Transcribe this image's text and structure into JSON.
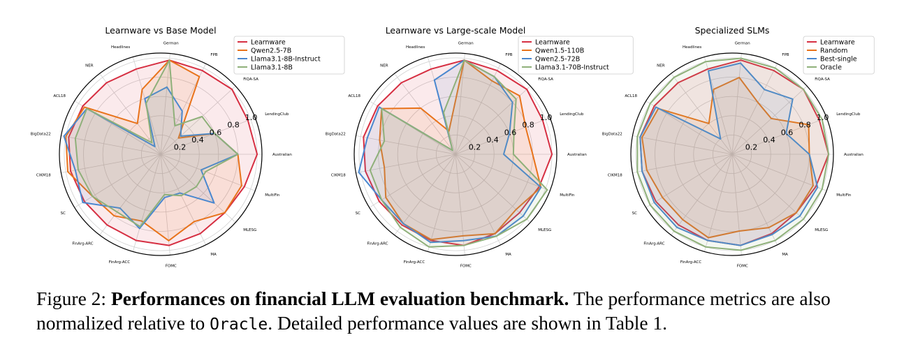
{
  "chart_data": [
    {
      "type": "radar",
      "title": "Learnware vs Base Model",
      "categories": [
        "Australian",
        "LendingClub",
        "FiQA-SA",
        "FPB",
        "German",
        "Headlines",
        "NER",
        "ACL18",
        "BigData22",
        "CIKM18",
        "SC",
        "FinArg-ARC",
        "FinArg-ACC",
        "FOMC",
        "MA",
        "MLESG",
        "MultiFin"
      ],
      "rticks": [
        "0.2",
        "0.4",
        "0.6",
        "0.8",
        "1.0"
      ],
      "rlim": [
        0,
        1.05
      ],
      "legend_position": "upper-right",
      "series": [
        {
          "name": "Learnware",
          "color": "#d62f42",
          "values": [
            1.0,
            0.97,
            1.0,
            0.97,
            0.98,
            0.92,
            0.93,
            0.95,
            0.97,
            0.95,
            0.93,
            0.92,
            0.93,
            0.95,
            0.92,
            0.9,
            0.93
          ]
        },
        {
          "name": "Qwen2.5-7B",
          "color": "#e8731b",
          "values": [
            0.8,
            0.6,
            0.25,
            0.9,
            0.98,
            0.7,
            0.4,
            0.93,
            1.0,
            0.98,
            0.83,
            0.8,
            0.72,
            0.9,
            0.78,
            0.9,
            0.9
          ]
        },
        {
          "name": "Llama3.1-8B-Instruct",
          "color": "#4a87cf",
          "values": [
            0.8,
            0.6,
            0.28,
            0.5,
            0.7,
            0.6,
            0.1,
            0.9,
            1.02,
            0.9,
            0.95,
            0.7,
            0.8,
            0.45,
            0.45,
            0.75,
            0.45
          ]
        },
        {
          "name": "Llama3.1-8B",
          "color": "#8fb07a",
          "values": [
            0.8,
            0.6,
            0.58,
            0.33,
            0.98,
            0.55,
            0.15,
            0.9,
            0.9,
            0.87,
            0.83,
            0.75,
            0.78,
            0.42,
            0.48,
            0.5,
            0.5
          ]
        }
      ]
    },
    {
      "type": "radar",
      "title": "Learnware vs Large-scale Model",
      "categories": [
        "Australian",
        "LendingClub",
        "FiQA-SA",
        "FPB",
        "German",
        "Headlines",
        "NER",
        "ACL18",
        "BigData22",
        "CIKM18",
        "SC",
        "FinArg-ARC",
        "FinArg-ACC",
        "FOMC",
        "MA",
        "MLESG",
        "MultiFin"
      ],
      "rticks": [
        "0.2",
        "0.4",
        "0.6",
        "0.8",
        "1.0"
      ],
      "rlim": [
        0,
        1.05
      ],
      "legend_position": "upper-right",
      "series": [
        {
          "name": "Learnware",
          "color": "#d62f42",
          "values": [
            1.0,
            0.97,
            1.0,
            0.97,
            0.98,
            0.92,
            0.93,
            0.95,
            0.97,
            0.95,
            0.93,
            0.92,
            0.93,
            0.95,
            0.92,
            0.9,
            0.93
          ]
        },
        {
          "name": "Qwen1.5-110B",
          "color": "#e8731b",
          "values": [
            0.8,
            0.78,
            0.9,
            0.85,
            0.98,
            0.25,
            0.6,
            0.9,
            0.8,
            0.75,
            0.85,
            0.9,
            0.92,
            0.85,
            0.92,
            0.85,
            0.95
          ]
        },
        {
          "name": "Qwen2.5-72B",
          "color": "#4a87cf",
          "values": [
            0.5,
            0.6,
            0.8,
            0.9,
            0.98,
            0.8,
            0.05,
            0.93,
            0.93,
            1.02,
            0.9,
            0.9,
            0.95,
            0.9,
            0.95,
            0.95,
            0.95
          ]
        },
        {
          "name": "Llama3.1-70B-Instruct",
          "color": "#8fb07a",
          "values": [
            0.6,
            0.65,
            0.85,
            0.9,
            0.98,
            0.45,
            0.05,
            0.9,
            0.75,
            0.9,
            0.9,
            0.95,
            1.0,
            0.95,
            0.95,
            1.0,
            1.02
          ]
        }
      ]
    },
    {
      "type": "radar",
      "title": "Specialized SLMs",
      "categories": [
        "Australian",
        "LendingClub",
        "FiQA-SA",
        "FPB",
        "German",
        "Headlines",
        "NER",
        "ACL18",
        "BigData22",
        "CIKM18",
        "SC",
        "FinArg-ARC",
        "FinArg-ACC",
        "FOMC",
        "MA",
        "MLESG",
        "MultiFin"
      ],
      "rticks": [
        "0.2",
        "0.4",
        "0.6",
        "0.8",
        "1.0"
      ],
      "rlim": [
        0,
        1.05
      ],
      "legend_position": "upper-right",
      "series": [
        {
          "name": "Learnware",
          "color": "#d62f42",
          "values": [
            1.0,
            0.97,
            1.0,
            0.97,
            0.98,
            0.92,
            0.93,
            0.95,
            0.97,
            0.95,
            0.93,
            0.92,
            0.93,
            0.95,
            0.92,
            0.9,
            0.93
          ]
        },
        {
          "name": "Random",
          "color": "#e8731b",
          "values": [
            0.8,
            0.85,
            0.55,
            0.6,
            0.8,
            0.7,
            0.4,
            0.9,
            0.95,
            0.9,
            0.85,
            0.85,
            0.9,
            0.8,
            0.85,
            0.9,
            0.9
          ]
        },
        {
          "name": "Best-single",
          "color": "#4a87cf",
          "values": [
            0.8,
            0.6,
            0.85,
            0.75,
            0.95,
            0.9,
            0.2,
            0.93,
            0.97,
            0.95,
            0.95,
            0.95,
            0.93,
            0.95,
            0.93,
            0.95,
            0.95
          ]
        },
        {
          "name": "Oracle",
          "color": "#8fb07a",
          "values": [
            1.0,
            1.0,
            1.0,
            1.0,
            1.0,
            1.0,
            1.0,
            1.0,
            1.0,
            1.0,
            1.0,
            1.0,
            1.0,
            1.0,
            1.0,
            1.0,
            1.0
          ]
        }
      ]
    }
  ],
  "caption": {
    "label": "Figure 2:",
    "bold": "Performances on financial LLM evaluation benchmark.",
    "text1": "The performance metrics are also normalized relative to",
    "code": "Oracle",
    "text2": ". Detailed performance values are shown in Table 1."
  }
}
